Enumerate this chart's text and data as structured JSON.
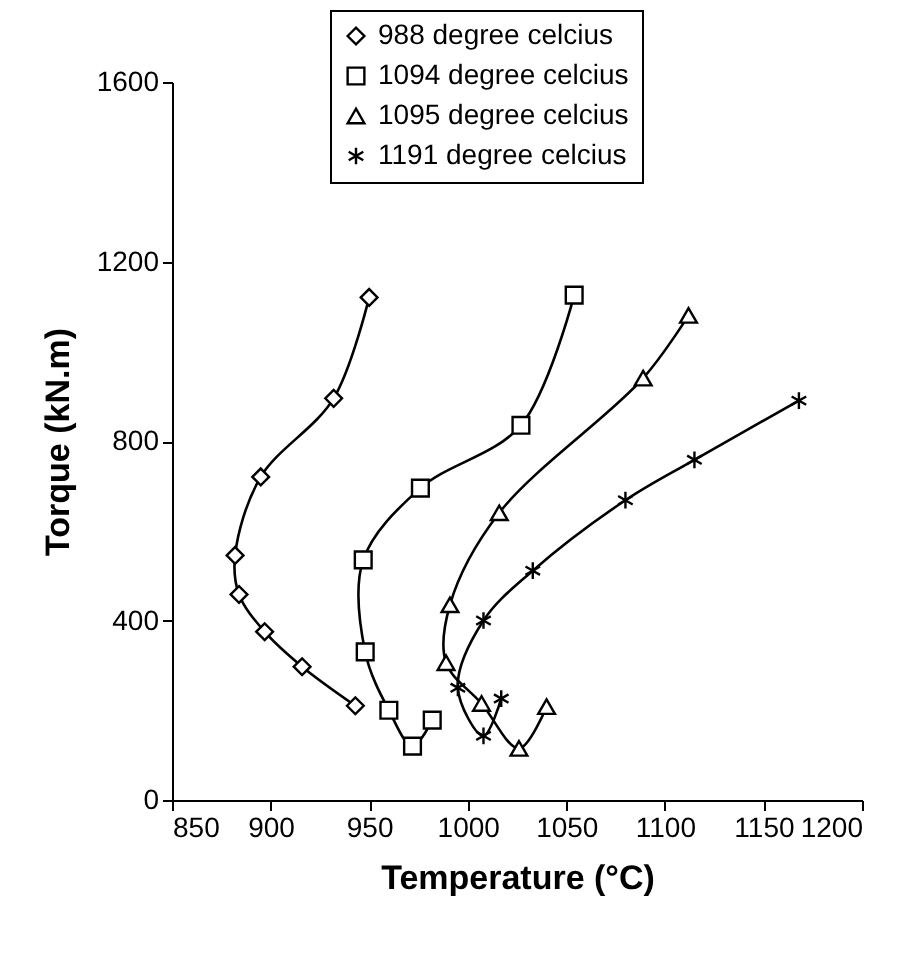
{
  "chart_data": {
    "type": "line",
    "xlabel": "Temperature (°C)",
    "ylabel": "Torque (kN.m)",
    "xlim": [
      850,
      1200
    ],
    "xticks": [
      850,
      900,
      950,
      1000,
      1050,
      1100,
      1150,
      1200
    ],
    "ylim": [
      0,
      1600
    ],
    "yticks": [
      0,
      400,
      800,
      1200,
      1600
    ],
    "grid": false,
    "legend": "top",
    "series": [
      {
        "name": "988 degree celcius",
        "color": "#000000",
        "marker": "diamond",
        "x": [
          950,
          932,
          895,
          882,
          884,
          897,
          916,
          943
        ],
        "values": [
          1120,
          895,
          720,
          545,
          458,
          375,
          297,
          210
        ]
      },
      {
        "name": "1094 degree celcius",
        "color": "#000000",
        "marker": "square",
        "x": [
          1054,
          1027,
          976,
          947,
          948,
          960,
          972,
          982
        ],
        "values": [
          1125,
          835,
          695,
          535,
          330,
          200,
          120,
          178
        ]
      },
      {
        "name": "1095 degree celcius",
        "color": "#000000",
        "marker": "triangle",
        "x": [
          1112,
          1089,
          1016,
          991,
          989,
          1007,
          1026,
          1040
        ],
        "values": [
          1080,
          940,
          640,
          435,
          306,
          215,
          115,
          208
        ]
      },
      {
        "name": "1191 degree celcius",
        "color": "#000000",
        "marker": "cross",
        "x": [
          1168,
          1115,
          1080,
          1033,
          1008,
          995,
          1008,
          1017
        ],
        "values": [
          890,
          758,
          668,
          511,
          400,
          250,
          143,
          226
        ]
      }
    ]
  }
}
